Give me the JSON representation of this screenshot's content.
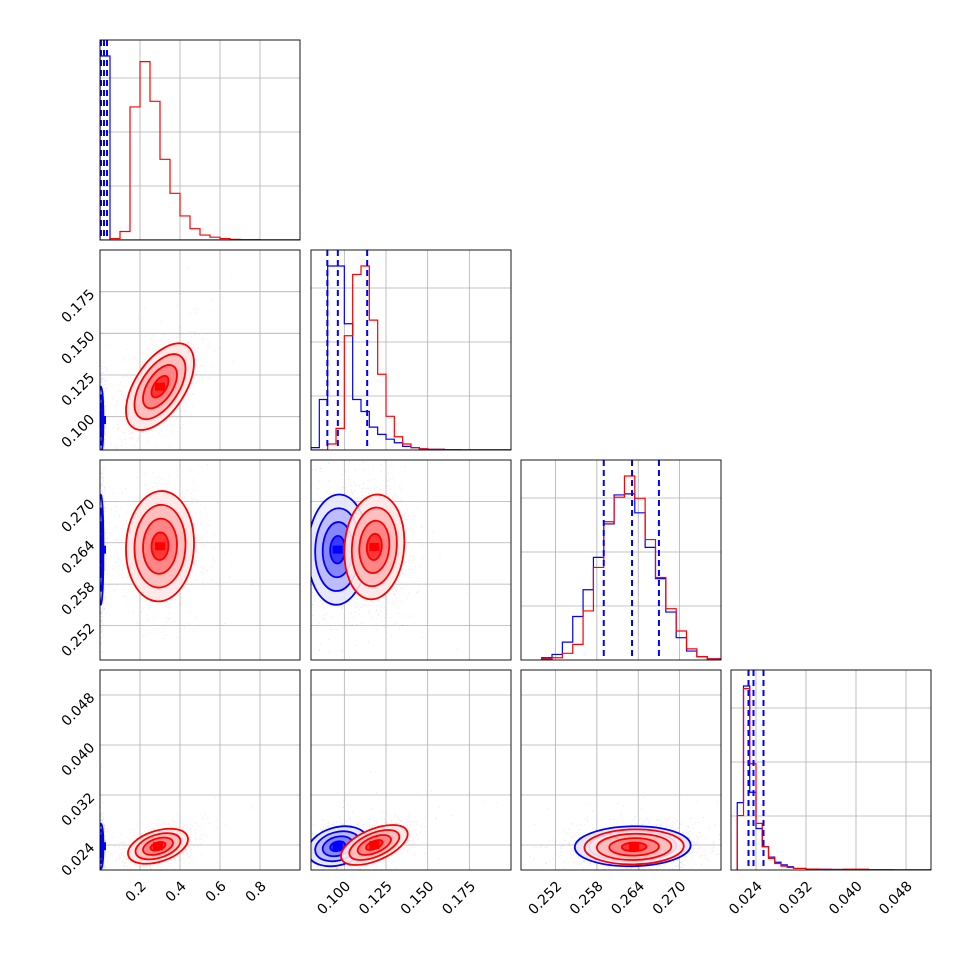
{
  "chart_data": {
    "type": "corner",
    "grid": true,
    "series": [
      {
        "name": "",
        "color": "#0000ff"
      },
      {
        "name": "",
        "color": "#ff0000"
      }
    ],
    "parameters": [
      {
        "index": 0,
        "range": [
          0.0,
          1.0
        ],
        "ticks": [
          0.2,
          0.4,
          0.6,
          0.8
        ],
        "tick_labels": [
          "0.2",
          "0.4",
          "0.6",
          "0.8"
        ]
      },
      {
        "index": 1,
        "range": [
          0.08,
          0.2
        ],
        "ticks": [
          0.1,
          0.125,
          0.15,
          0.175
        ],
        "tick_labels": [
          "0.100",
          "0.125",
          "0.150",
          "0.175"
        ]
      },
      {
        "index": 2,
        "range": [
          0.247,
          0.276
        ],
        "ticks": [
          0.252,
          0.258,
          0.264,
          0.27
        ],
        "tick_labels": [
          "0.252",
          "0.258",
          "0.264",
          "0.270"
        ]
      },
      {
        "index": 3,
        "range": [
          0.02,
          0.052
        ],
        "ticks": [
          0.024,
          0.032,
          0.04,
          0.048
        ],
        "tick_labels": [
          "0.024",
          "0.032",
          "0.040",
          "0.048"
        ]
      }
    ],
    "histograms": [
      {
        "param": 0,
        "bins": [
          0.0,
          0.05,
          0.1,
          0.15,
          0.2,
          0.25,
          0.3,
          0.35,
          0.4,
          0.45,
          0.5,
          0.55,
          0.6,
          0.65,
          0.7,
          0.8,
          1.0
        ],
        "series": [
          {
            "name": "",
            "counts": [
              2.6,
              0,
              0,
              0,
              0,
              0,
              0,
              0,
              0,
              0,
              0,
              0,
              0,
              0,
              0,
              0
            ]
          },
          {
            "name": "",
            "counts": [
              0,
              0.02,
              0.12,
              1.88,
              2.52,
              1.96,
              1.14,
              0.66,
              0.34,
              0.16,
              0.07,
              0.04,
              0.02,
              0.01,
              0.005,
              0.002
            ]
          }
        ],
        "quantile_lines": [
          0.005,
          0.02,
          0.035
        ]
      },
      {
        "param": 1,
        "bins": [
          0.08,
          0.085,
          0.09,
          0.095,
          0.1,
          0.105,
          0.11,
          0.115,
          0.12,
          0.125,
          0.13,
          0.135,
          0.14,
          0.145,
          0.15,
          0.16,
          0.17,
          0.2
        ],
        "series": [
          {
            "name": "",
            "counts": [
              0.02,
              0.42,
              1.53,
              1.53,
              1.05,
              0.42,
              0.32,
              0.19,
              0.13,
              0.09,
              0.06,
              0.03,
              0.02,
              0.01,
              0.005,
              0.002,
              0.001
            ]
          },
          {
            "name": "",
            "counts": [
              0,
              0,
              0.05,
              0.18,
              0.95,
              1.46,
              1.53,
              1.08,
              0.63,
              0.28,
              0.11,
              0.05,
              0.02,
              0.01,
              0.005,
              0.003,
              0.001
            ]
          }
        ],
        "quantile_lines": [
          0.0898,
          0.0961,
          0.1137
        ]
      },
      {
        "param": 2,
        "bins": [
          0.25,
          0.2515,
          0.253,
          0.2545,
          0.256,
          0.2575,
          0.259,
          0.2605,
          0.262,
          0.2635,
          0.265,
          0.2665,
          0.268,
          0.2695,
          0.271,
          0.2725,
          0.274,
          0.276
        ],
        "series": [
          {
            "name": "",
            "counts": [
              0.02,
              0.05,
              0.16,
              0.39,
              0.63,
              0.92,
              1.22,
              1.48,
              1.49,
              1.32,
              1.01,
              0.73,
              0.43,
              0.2,
              0.08,
              0.03,
              0.01
            ]
          },
          {
            "name": "",
            "counts": [
              0.01,
              0.02,
              0.06,
              0.14,
              0.44,
              0.83,
              1.24,
              1.46,
              1.65,
              1.45,
              1.08,
              0.74,
              0.46,
              0.26,
              0.1,
              0.03,
              0.01
            ]
          }
        ],
        "quantile_lines": [
          0.259,
          0.2631,
          0.267
        ]
      },
      {
        "param": 3,
        "bins": [
          0.021,
          0.022,
          0.023,
          0.024,
          0.025,
          0.026,
          0.027,
          0.028,
          0.029,
          0.03,
          0.032,
          0.034,
          0.036,
          0.038,
          0.042,
          0.046,
          0.052
        ],
        "series": [
          {
            "name": "",
            "counts": [
              0.52,
              1.42,
              0.6,
              0.32,
              0.18,
              0.1,
              0.06,
              0.04,
              0.025,
              0.012,
              0.007,
              0.005,
              0.004,
              0.003,
              0.002,
              0.001
            ]
          },
          {
            "name": "",
            "counts": [
              0.42,
              1.4,
              0.82,
              0.36,
              0.18,
              0.09,
              0.05,
              0.03,
              0.02,
              0.012,
              0.007,
              0.005,
              0.004,
              0.006,
              0.002,
              0.001
            ]
          }
        ],
        "quantile_lines": [
          0.0228,
          0.0236,
          0.0252
        ]
      }
    ],
    "pairs": [
      {
        "x_param": 0,
        "y_param": 1,
        "series": [
          {
            "name": "",
            "center": [
              0.005,
              0.098
            ],
            "sigma": [
              0.006,
              0.01
            ],
            "rho": 0.0
          },
          {
            "name": "",
            "center": [
              0.3,
              0.118
            ],
            "sigma": [
              0.085,
              0.013
            ],
            "rho": 0.55
          }
        ]
      },
      {
        "x_param": 0,
        "y_param": 2,
        "series": [
          {
            "name": "",
            "center": [
              0.005,
              0.263
            ],
            "sigma": [
              0.006,
              0.004
            ],
            "rho": 0.0
          },
          {
            "name": "",
            "center": [
              0.3,
              0.2635
            ],
            "sigma": [
              0.085,
              0.004
            ],
            "rho": 0.05
          }
        ]
      },
      {
        "x_param": 0,
        "y_param": 3,
        "series": [
          {
            "name": "",
            "center": [
              0.005,
              0.0238
            ],
            "sigma": [
              0.006,
              0.0018
            ],
            "rho": 0.0
          },
          {
            "name": "",
            "center": [
              0.29,
              0.0238
            ],
            "sigma": [
              0.075,
              0.0014
            ],
            "rho": 0.4
          }
        ]
      },
      {
        "x_param": 1,
        "y_param": 2,
        "series": [
          {
            "name": "",
            "center": [
              0.096,
              0.263
            ],
            "sigma": [
              0.009,
              0.004
            ],
            "rho": 0.05
          },
          {
            "name": "",
            "center": [
              0.118,
              0.2634
            ],
            "sigma": [
              0.009,
              0.0038
            ],
            "rho": 0.1
          }
        ]
      },
      {
        "x_param": 1,
        "y_param": 3,
        "series": [
          {
            "name": "",
            "center": [
              0.096,
              0.0238
            ],
            "sigma": [
              0.009,
              0.0016
            ],
            "rho": 0.25
          },
          {
            "name": "",
            "center": [
              0.118,
              0.024
            ],
            "sigma": [
              0.01,
              0.0016
            ],
            "rho": 0.55
          }
        ]
      },
      {
        "x_param": 2,
        "y_param": 3,
        "series": [
          {
            "name": "",
            "center": [
              0.2632,
              0.0238
            ],
            "sigma": [
              0.0042,
              0.0016
            ],
            "rho": 0.05
          },
          {
            "name": "",
            "center": [
              0.2634,
              0.0237
            ],
            "sigma": [
              0.0036,
              0.0014
            ],
            "rho": 0.05
          }
        ]
      }
    ]
  }
}
